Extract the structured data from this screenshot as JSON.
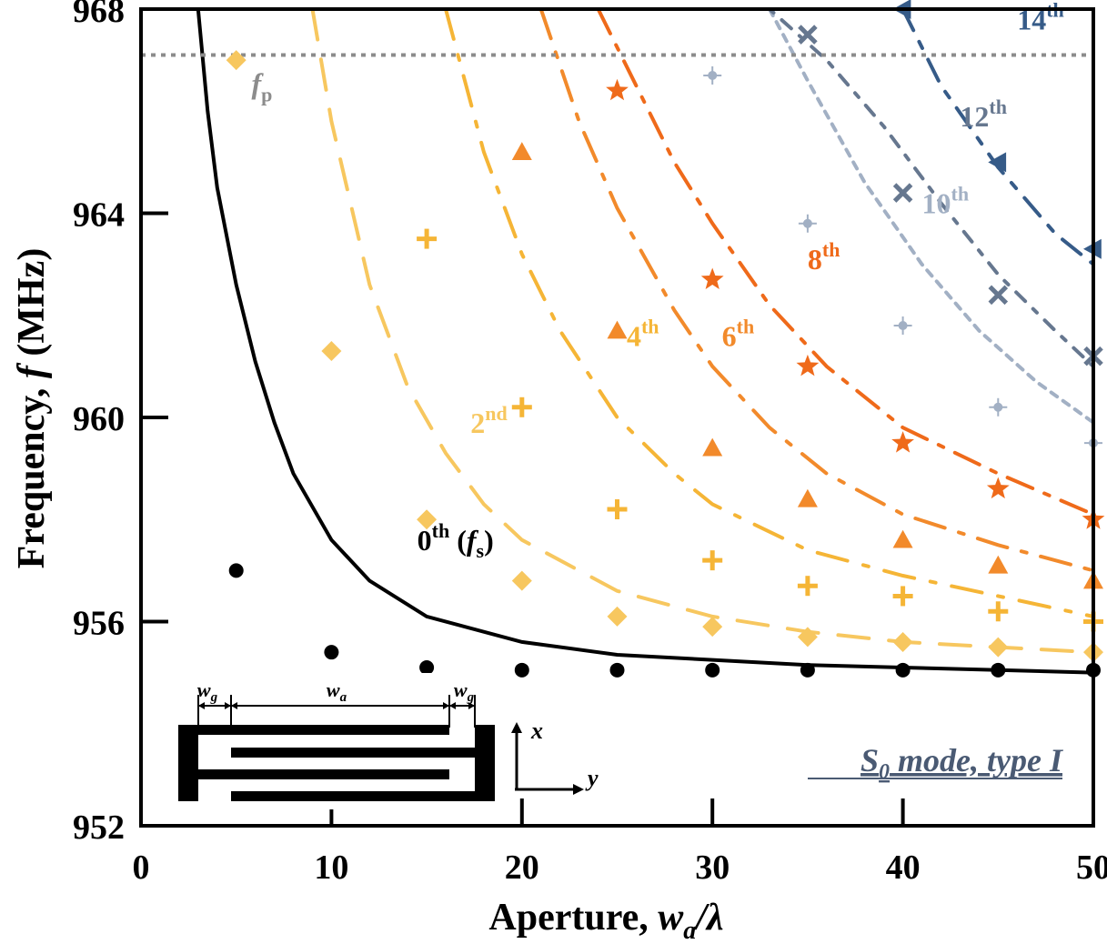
{
  "chart_data": {
    "type": "scatter",
    "xlabel_prefix": "Aperture, ",
    "xlabel_var": "w",
    "xlabel_sub": "a",
    "xlabel_suffix": "/λ",
    "ylabel_prefix": "Frequency, ",
    "ylabel_var": "f",
    "ylabel_suffix": " (MHz)",
    "xlim": [
      0,
      50
    ],
    "ylim": [
      952,
      968
    ],
    "xticks": [
      0,
      10,
      20,
      30,
      40,
      50
    ],
    "yticks": [
      952,
      956,
      960,
      964,
      968
    ],
    "annotation": {
      "mode_text": "S",
      "mode_sub": "0",
      "mode_rest": " mode, type I"
    },
    "reference_line": {
      "y": 967.1,
      "label_main": "f",
      "label_sub": "p",
      "color": "#8c8c8c"
    },
    "orders": [
      {
        "label_main": "0",
        "label_sup": "th",
        "label_extra_var": "f",
        "label_extra_sub": "s",
        "color": "#000000",
        "marker": "circle",
        "points": [
          [
            5,
            957.0
          ],
          [
            10,
            955.4
          ],
          [
            15,
            955.1
          ],
          [
            20,
            955.05
          ],
          [
            25,
            955.05
          ],
          [
            30,
            955.05
          ],
          [
            35,
            955.05
          ],
          [
            40,
            955.05
          ],
          [
            45,
            955.05
          ],
          [
            50,
            955.05
          ]
        ],
        "curve": [
          [
            3.0,
            968
          ],
          [
            3.5,
            966
          ],
          [
            4,
            964.5
          ],
          [
            5,
            962.6
          ],
          [
            6,
            961.1
          ],
          [
            7,
            959.9
          ],
          [
            8,
            958.9
          ],
          [
            10,
            957.6
          ],
          [
            12,
            956.8
          ],
          [
            15,
            956.1
          ],
          [
            20,
            955.6
          ],
          [
            25,
            955.35
          ],
          [
            30,
            955.25
          ],
          [
            35,
            955.15
          ],
          [
            40,
            955.1
          ],
          [
            45,
            955.05
          ],
          [
            50,
            955.0
          ]
        ]
      },
      {
        "label_main": "2",
        "label_sup": "nd",
        "color": "#f7c75f",
        "marker": "diamond",
        "points": [
          [
            5,
            967.0
          ],
          [
            10,
            961.3
          ],
          [
            15,
            958.0
          ],
          [
            20,
            956.8
          ],
          [
            25,
            956.1
          ],
          [
            30,
            955.9
          ],
          [
            35,
            955.7
          ],
          [
            40,
            955.6
          ],
          [
            45,
            955.5
          ],
          [
            50,
            955.4
          ]
        ],
        "curve": [
          [
            9,
            968
          ],
          [
            10,
            965.8
          ],
          [
            12,
            962.6
          ],
          [
            14,
            960.6
          ],
          [
            16,
            959.3
          ],
          [
            18,
            958.3
          ],
          [
            20,
            957.6
          ],
          [
            25,
            956.6
          ],
          [
            30,
            956.1
          ],
          [
            35,
            955.8
          ],
          [
            40,
            955.6
          ],
          [
            45,
            955.5
          ],
          [
            50,
            955.4
          ]
        ]
      },
      {
        "label_main": "4",
        "label_sup": "th",
        "color": "#f5b536",
        "marker": "plus",
        "points": [
          [
            15,
            963.5
          ],
          [
            20,
            960.2
          ],
          [
            25,
            958.2
          ],
          [
            30,
            957.2
          ],
          [
            35,
            956.7
          ],
          [
            40,
            956.5
          ],
          [
            45,
            956.2
          ],
          [
            50,
            956.0
          ]
        ],
        "curve": [
          [
            16,
            968
          ],
          [
            18,
            965.2
          ],
          [
            20,
            963.2
          ],
          [
            22,
            961.7
          ],
          [
            25,
            960.0
          ],
          [
            28,
            958.9
          ],
          [
            30,
            958.3
          ],
          [
            35,
            957.4
          ],
          [
            40,
            956.9
          ],
          [
            45,
            956.5
          ],
          [
            50,
            956.1
          ]
        ]
      },
      {
        "label_main": "6",
        "label_sup": "th",
        "color": "#f28a2b",
        "marker": "triangle",
        "points": [
          [
            20,
            965.2
          ],
          [
            25,
            961.7
          ],
          [
            30,
            959.4
          ],
          [
            35,
            958.4
          ],
          [
            40,
            957.6
          ],
          [
            45,
            957.1
          ],
          [
            50,
            956.8
          ]
        ],
        "curve": [
          [
            21,
            968
          ],
          [
            23,
            965.8
          ],
          [
            25,
            964.1
          ],
          [
            28,
            962.1
          ],
          [
            30,
            961.0
          ],
          [
            33,
            959.8
          ],
          [
            36,
            958.9
          ],
          [
            40,
            958.1
          ],
          [
            45,
            957.5
          ],
          [
            50,
            957.0
          ]
        ]
      },
      {
        "label_main": "8",
        "label_sup": "th",
        "color": "#ef6a1a",
        "marker": "star",
        "points": [
          [
            25,
            966.4
          ],
          [
            30,
            962.7
          ],
          [
            35,
            961.0
          ],
          [
            40,
            959.5
          ],
          [
            45,
            958.6
          ],
          [
            50,
            958.0
          ]
        ],
        "curve": [
          [
            24,
            968
          ],
          [
            26,
            966.5
          ],
          [
            28,
            965.0
          ],
          [
            30,
            963.8
          ],
          [
            33,
            962.2
          ],
          [
            36,
            961.0
          ],
          [
            40,
            959.8
          ],
          [
            45,
            958.9
          ],
          [
            50,
            958.1
          ]
        ]
      },
      {
        "label_main": "10",
        "label_sup": "th",
        "color": "#a2b0c4",
        "marker": "crosshair",
        "points": [
          [
            30,
            966.7
          ],
          [
            35,
            963.8
          ],
          [
            40,
            961.8
          ],
          [
            45,
            960.2
          ],
          [
            50,
            959.5
          ]
        ],
        "curve": [
          [
            33,
            968
          ],
          [
            35,
            966.6
          ],
          [
            38,
            964.6
          ],
          [
            41,
            963.0
          ],
          [
            44,
            961.7
          ],
          [
            47,
            960.7
          ],
          [
            50,
            959.9
          ]
        ]
      },
      {
        "label_main": "12",
        "label_sup": "th",
        "color": "#66778f",
        "marker": "x",
        "points": [
          [
            35,
            967.5
          ],
          [
            40,
            964.4
          ],
          [
            45,
            962.4
          ],
          [
            50,
            961.2
          ]
        ],
        "curve": [
          [
            33,
            968
          ],
          [
            36,
            967.0
          ],
          [
            39,
            965.7
          ],
          [
            42,
            964.2
          ],
          [
            45,
            962.8
          ],
          [
            48,
            961.7
          ],
          [
            50,
            961.0
          ]
        ]
      },
      {
        "label_main": "14",
        "label_sup": "th",
        "color": "#365b88",
        "marker": "triangle-left",
        "points": [
          [
            40,
            968.0
          ],
          [
            45,
            965.0
          ],
          [
            50,
            963.3
          ]
        ],
        "curve": [
          [
            40,
            968
          ],
          [
            42,
            966.5
          ],
          [
            45,
            964.9
          ],
          [
            48,
            963.6
          ],
          [
            50,
            963.0
          ]
        ]
      }
    ],
    "order_label_positions": [
      {
        "x": 14.5,
        "y": 957.4
      },
      {
        "x": 17.3,
        "y": 959.7
      },
      {
        "x": 25.5,
        "y": 961.4
      },
      {
        "x": 30.5,
        "y": 961.4
      },
      {
        "x": 35.0,
        "y": 962.9
      },
      {
        "x": 41.0,
        "y": 964.0
      },
      {
        "x": 43.0,
        "y": 965.7
      },
      {
        "x": 46.0,
        "y": 967.6
      }
    ]
  }
}
